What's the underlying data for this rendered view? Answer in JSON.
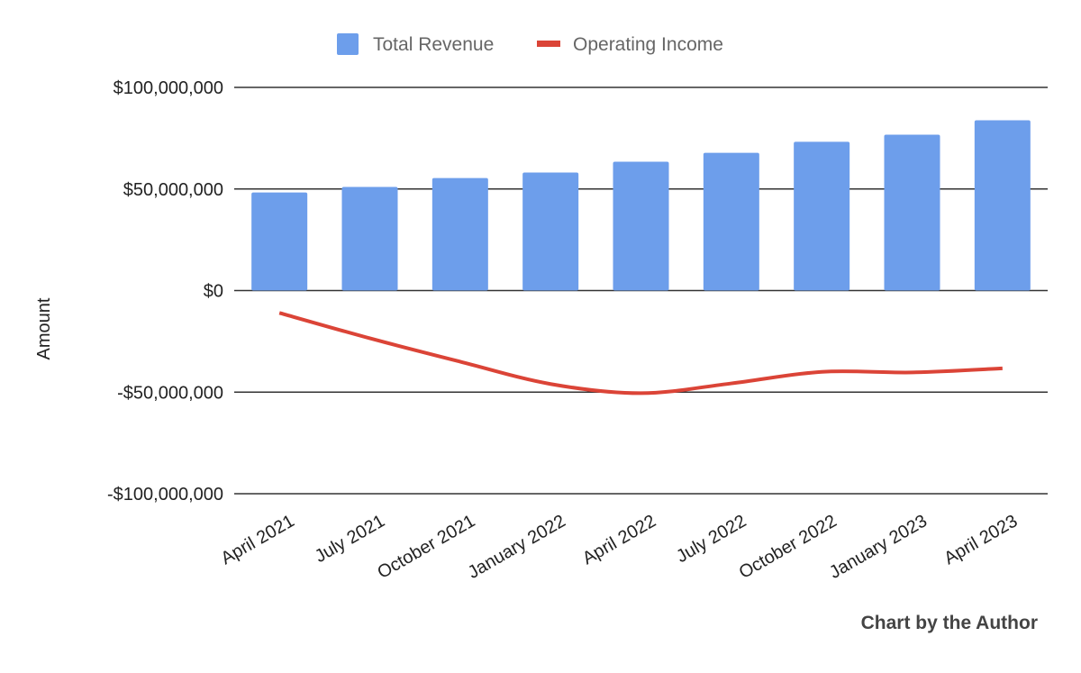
{
  "chart_data": {
    "type": "bar+line",
    "title": "",
    "xlabel": "",
    "ylabel": "Amount",
    "ylim": [
      -100000000,
      100000000
    ],
    "yticks": [
      100000000,
      50000000,
      0,
      -50000000,
      -100000000
    ],
    "ytick_labels": [
      "$100,000,000",
      "$50,000,000",
      "$0",
      "-$50,000,000",
      "-$100,000,000"
    ],
    "grid": true,
    "legend_position": "top",
    "categories": [
      "April 2021",
      "July 2021",
      "October 2021",
      "January 2022",
      "April 2022",
      "July 2022",
      "October 2022",
      "January 2023",
      "April 2023"
    ],
    "series": [
      {
        "name": "Total Revenue",
        "type": "bar",
        "color": "#6d9eeb",
        "values": [
          48300000,
          51000000,
          55400000,
          58100000,
          63400000,
          67800000,
          73200000,
          76700000,
          83800000
        ]
      },
      {
        "name": "Operating Income",
        "type": "line",
        "smooth": true,
        "color": "#db4437",
        "values": [
          -11000000,
          -23500000,
          -35000000,
          -46000000,
          -50500000,
          -45700000,
          -40000000,
          -40300000,
          -38300000
        ]
      }
    ]
  },
  "credit": "Chart by the Author"
}
